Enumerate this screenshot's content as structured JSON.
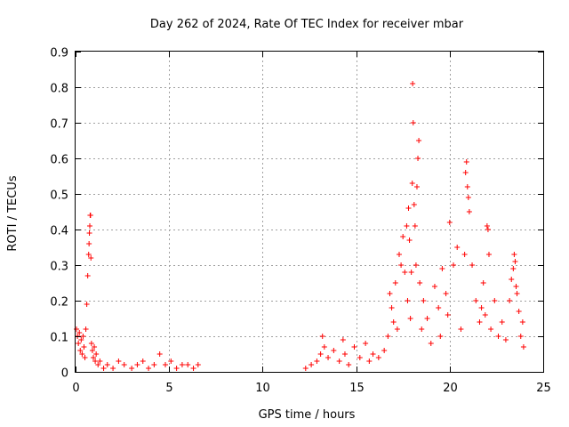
{
  "chart_data": {
    "type": "scatter",
    "title": "Day 262 of 2024, Rate Of TEC Index for receiver mbar",
    "xlabel": "GPS time / hours",
    "ylabel": "ROTI / TECUs",
    "xlim": [
      0,
      25
    ],
    "ylim": [
      0,
      0.9
    ],
    "xticks": [
      "0",
      "5",
      "10",
      "15",
      "20",
      "25"
    ],
    "yticks": [
      "0",
      "0.1",
      "0.2",
      "0.3",
      "0.4",
      "0.5",
      "0.6",
      "0.7",
      "0.8",
      "0.9"
    ],
    "grid": true,
    "marker": "+",
    "color": "#ff0000",
    "series": [
      {
        "name": "ROTI",
        "x": [
          0.05,
          0.1,
          0.15,
          0.2,
          0.25,
          0.3,
          0.35,
          0.4,
          0.45,
          0.5,
          0.55,
          0.6,
          0.65,
          0.7,
          0.72,
          0.74,
          0.76,
          0.78,
          0.8,
          0.82,
          0.85,
          0.9,
          0.95,
          1.0,
          1.05,
          1.1,
          1.2,
          1.3,
          1.5,
          1.7,
          2.0,
          2.3,
          2.6,
          3.0,
          3.3,
          3.6,
          3.9,
          4.2,
          4.5,
          4.8,
          5.1,
          5.4,
          5.7,
          6.0,
          6.3,
          6.55,
          12.3,
          12.6,
          12.9,
          13.1,
          13.2,
          13.3,
          13.5,
          13.8,
          14.1,
          14.3,
          14.4,
          14.6,
          14.9,
          15.2,
          15.5,
          15.7,
          15.9,
          16.2,
          16.5,
          16.7,
          16.8,
          16.9,
          17.0,
          17.1,
          17.2,
          17.3,
          17.4,
          17.5,
          17.6,
          17.7,
          17.75,
          17.8,
          17.85,
          17.9,
          17.95,
          18.0,
          18.02,
          18.05,
          18.1,
          18.15,
          18.2,
          18.25,
          18.3,
          18.35,
          18.4,
          18.5,
          18.6,
          18.8,
          19.0,
          19.2,
          19.4,
          19.5,
          19.6,
          19.8,
          19.9,
          20.0,
          20.2,
          20.4,
          20.6,
          20.8,
          20.85,
          20.9,
          20.95,
          21.0,
          21.05,
          21.2,
          21.4,
          21.6,
          21.7,
          21.8,
          21.9,
          22.0,
          22.05,
          22.1,
          22.2,
          22.4,
          22.6,
          22.8,
          23.0,
          23.2,
          23.3,
          23.4,
          23.45,
          23.5,
          23.55,
          23.6,
          23.7,
          23.8,
          23.9,
          23.95
        ],
        "y": [
          0.12,
          0.1,
          0.08,
          0.11,
          0.06,
          0.09,
          0.05,
          0.1,
          0.07,
          0.04,
          0.12,
          0.19,
          0.27,
          0.33,
          0.36,
          0.39,
          0.41,
          0.44,
          0.44,
          0.32,
          0.08,
          0.06,
          0.04,
          0.07,
          0.03,
          0.05,
          0.02,
          0.03,
          0.01,
          0.02,
          0.01,
          0.03,
          0.02,
          0.01,
          0.02,
          0.03,
          0.01,
          0.02,
          0.05,
          0.02,
          0.03,
          0.01,
          0.02,
          0.02,
          0.01,
          0.02,
          0.01,
          0.02,
          0.03,
          0.05,
          0.1,
          0.07,
          0.04,
          0.06,
          0.03,
          0.09,
          0.05,
          0.02,
          0.07,
          0.04,
          0.08,
          0.03,
          0.05,
          0.04,
          0.06,
          0.1,
          0.22,
          0.18,
          0.14,
          0.25,
          0.12,
          0.33,
          0.3,
          0.38,
          0.28,
          0.41,
          0.2,
          0.46,
          0.37,
          0.15,
          0.28,
          0.53,
          0.81,
          0.7,
          0.47,
          0.41,
          0.3,
          0.52,
          0.6,
          0.65,
          0.25,
          0.12,
          0.2,
          0.15,
          0.08,
          0.24,
          0.18,
          0.1,
          0.29,
          0.22,
          0.16,
          0.42,
          0.3,
          0.35,
          0.12,
          0.33,
          0.56,
          0.59,
          0.52,
          0.49,
          0.45,
          0.3,
          0.2,
          0.14,
          0.18,
          0.25,
          0.16,
          0.41,
          0.4,
          0.33,
          0.12,
          0.2,
          0.1,
          0.14,
          0.09,
          0.2,
          0.26,
          0.29,
          0.33,
          0.31,
          0.24,
          0.22,
          0.17,
          0.1,
          0.14,
          0.07
        ]
      }
    ]
  }
}
